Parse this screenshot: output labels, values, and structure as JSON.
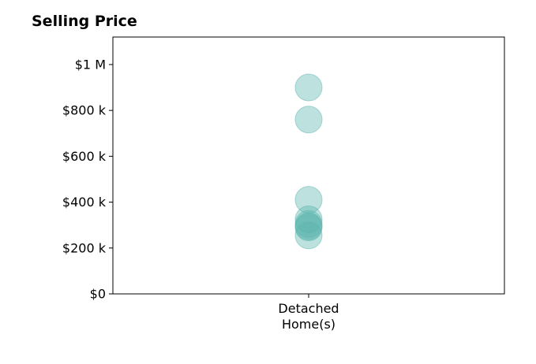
{
  "chart_data": {
    "type": "scatter",
    "title": "Selling Price",
    "categories": [
      "Detached|Home(s)"
    ],
    "ylim": [
      0,
      1120000
    ],
    "yticks": [
      0,
      200000,
      400000,
      600000,
      800000,
      1000000
    ],
    "ytick_labels": [
      "$0",
      "$200 k",
      "$400 k",
      "$600 k",
      "$800 k",
      "$1 M"
    ],
    "grid": false,
    "marker_color": "#5bb5ad",
    "marker_opacity": 0.4,
    "series": [
      {
        "values": [
          900000,
          760000,
          410000,
          325000,
          305000,
          295000,
          290000,
          255000
        ]
      }
    ]
  }
}
